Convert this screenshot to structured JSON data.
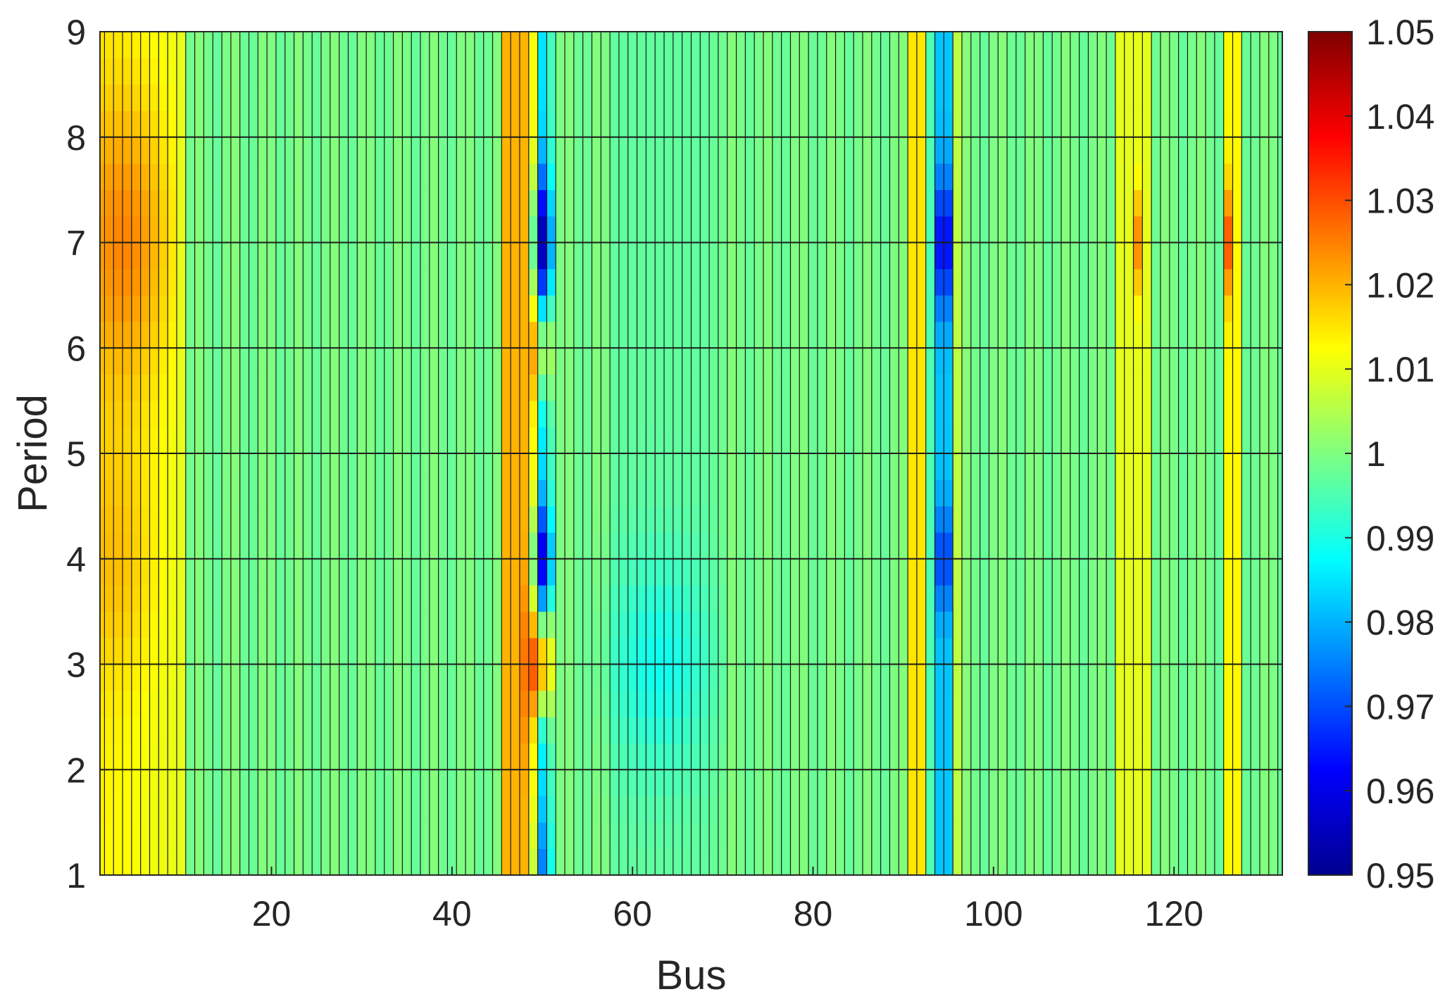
{
  "chart_data": {
    "type": "heatmap",
    "title": "",
    "xlabel": "Bus",
    "ylabel": "Period",
    "xlim": [
      1,
      132
    ],
    "ylim": [
      1,
      9
    ],
    "xticks": [
      20,
      40,
      60,
      80,
      100,
      120
    ],
    "yticks": [
      1,
      2,
      3,
      4,
      5,
      6,
      7,
      8,
      9
    ],
    "colorbar": {
      "colormap": "jet",
      "min": 0.95,
      "max": 1.05,
      "ticks": [
        "0.95",
        "0.96",
        "0.97",
        "0.98",
        "0.99",
        "1",
        "1.01",
        "1.02",
        "1.03",
        "1.04",
        "1.05"
      ]
    },
    "grid": true,
    "columns": 132,
    "rows": 9,
    "description_values": {
      "base_level": 0.999,
      "features": [
        {
          "bus_range": [
            1,
            8
          ],
          "period_peak": 7,
          "value": 1.025
        },
        {
          "bus_range": [
            46,
            48
          ],
          "value": 1.022
        },
        {
          "bus": 50,
          "period": 7,
          "value": 0.955
        },
        {
          "bus": 50,
          "period": 4,
          "value": 0.958
        },
        {
          "bus": 49,
          "period": 3,
          "value": 1.027
        },
        {
          "bus_range": [
            91,
            92
          ],
          "value": 1.015
        },
        {
          "bus": 94,
          "period": 7,
          "value": 0.963
        },
        {
          "bus": 94,
          "period": 4,
          "value": 0.968
        },
        {
          "bus": 116,
          "period": 7,
          "value": 1.024
        },
        {
          "bus": 126,
          "period": 7,
          "value": 1.028
        },
        {
          "bus_range": [
            58,
            68
          ],
          "period": 3,
          "value": 0.99
        }
      ]
    }
  }
}
